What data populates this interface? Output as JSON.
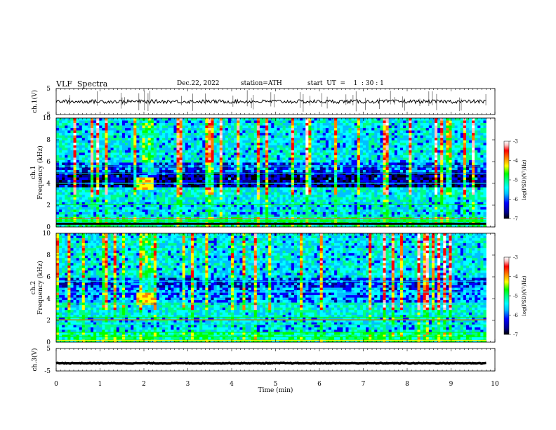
{
  "header": {
    "title": "VLF  Spectra",
    "date": "Dec.22, 2022",
    "station": "station=ATH",
    "start_ut": "start  UT  =    1  : 30 : 1"
  },
  "chart_data": [
    {
      "type": "line",
      "name": "ch1-voltage",
      "ylabel": "ch.1(V)",
      "ylim": [
        -5,
        5
      ],
      "yticks": [
        "5",
        "-5"
      ],
      "x_range_min": [
        0,
        9.8
      ],
      "baseline": 0
    },
    {
      "type": "heatmap",
      "name": "ch1-spectrogram",
      "ylabel": "ch.1\nFrequency (kHz)",
      "ylim": [
        0,
        10
      ],
      "yticks": [
        "0",
        "2",
        "4",
        "6",
        "8",
        "10"
      ],
      "x_range_min": [
        0,
        9.8
      ],
      "colorbar": {
        "label": "log(PSD)(V²/Hz)",
        "range": [
          -7,
          -3
        ],
        "ticks": [
          "-3",
          "-4",
          "-5",
          "-6",
          "-7"
        ]
      }
    },
    {
      "type": "heatmap",
      "name": "ch2-spectrogram",
      "ylabel": "ch.2\nFrequency (kHz)",
      "ylim": [
        0,
        10
      ],
      "yticks": [
        "0",
        "2",
        "4",
        "6",
        "8",
        "10"
      ],
      "x_range_min": [
        0,
        9.8
      ],
      "colorbar": {
        "label": "log(PSD)(V²/Hz)",
        "range": [
          -7,
          -3
        ],
        "ticks": [
          "-3",
          "-4",
          "-5",
          "-6",
          "-7"
        ]
      }
    },
    {
      "type": "line",
      "name": "ch3-voltage",
      "ylabel": "ch.3(V)",
      "ylim": [
        -5,
        5
      ],
      "yticks": [
        "5",
        "-5"
      ],
      "x_range_min": [
        0,
        9.8
      ],
      "baseline": -1.5
    }
  ],
  "xaxis": {
    "label": "Time  (min)",
    "ticks": [
      "0",
      "1",
      "2",
      "3",
      "4",
      "5",
      "6",
      "7",
      "8",
      "9",
      "10"
    ],
    "xlim": [
      0,
      10
    ]
  },
  "colors": {
    "frame": "#000000",
    "trace": "#000000",
    "colormap": [
      "#000000",
      "#00008b",
      "#0000ff",
      "#00bfff",
      "#00ffff",
      "#00ff80",
      "#00ff00",
      "#ffff00",
      "#ff8000",
      "#ff0000",
      "#ffc0c0",
      "#ffffff"
    ]
  }
}
